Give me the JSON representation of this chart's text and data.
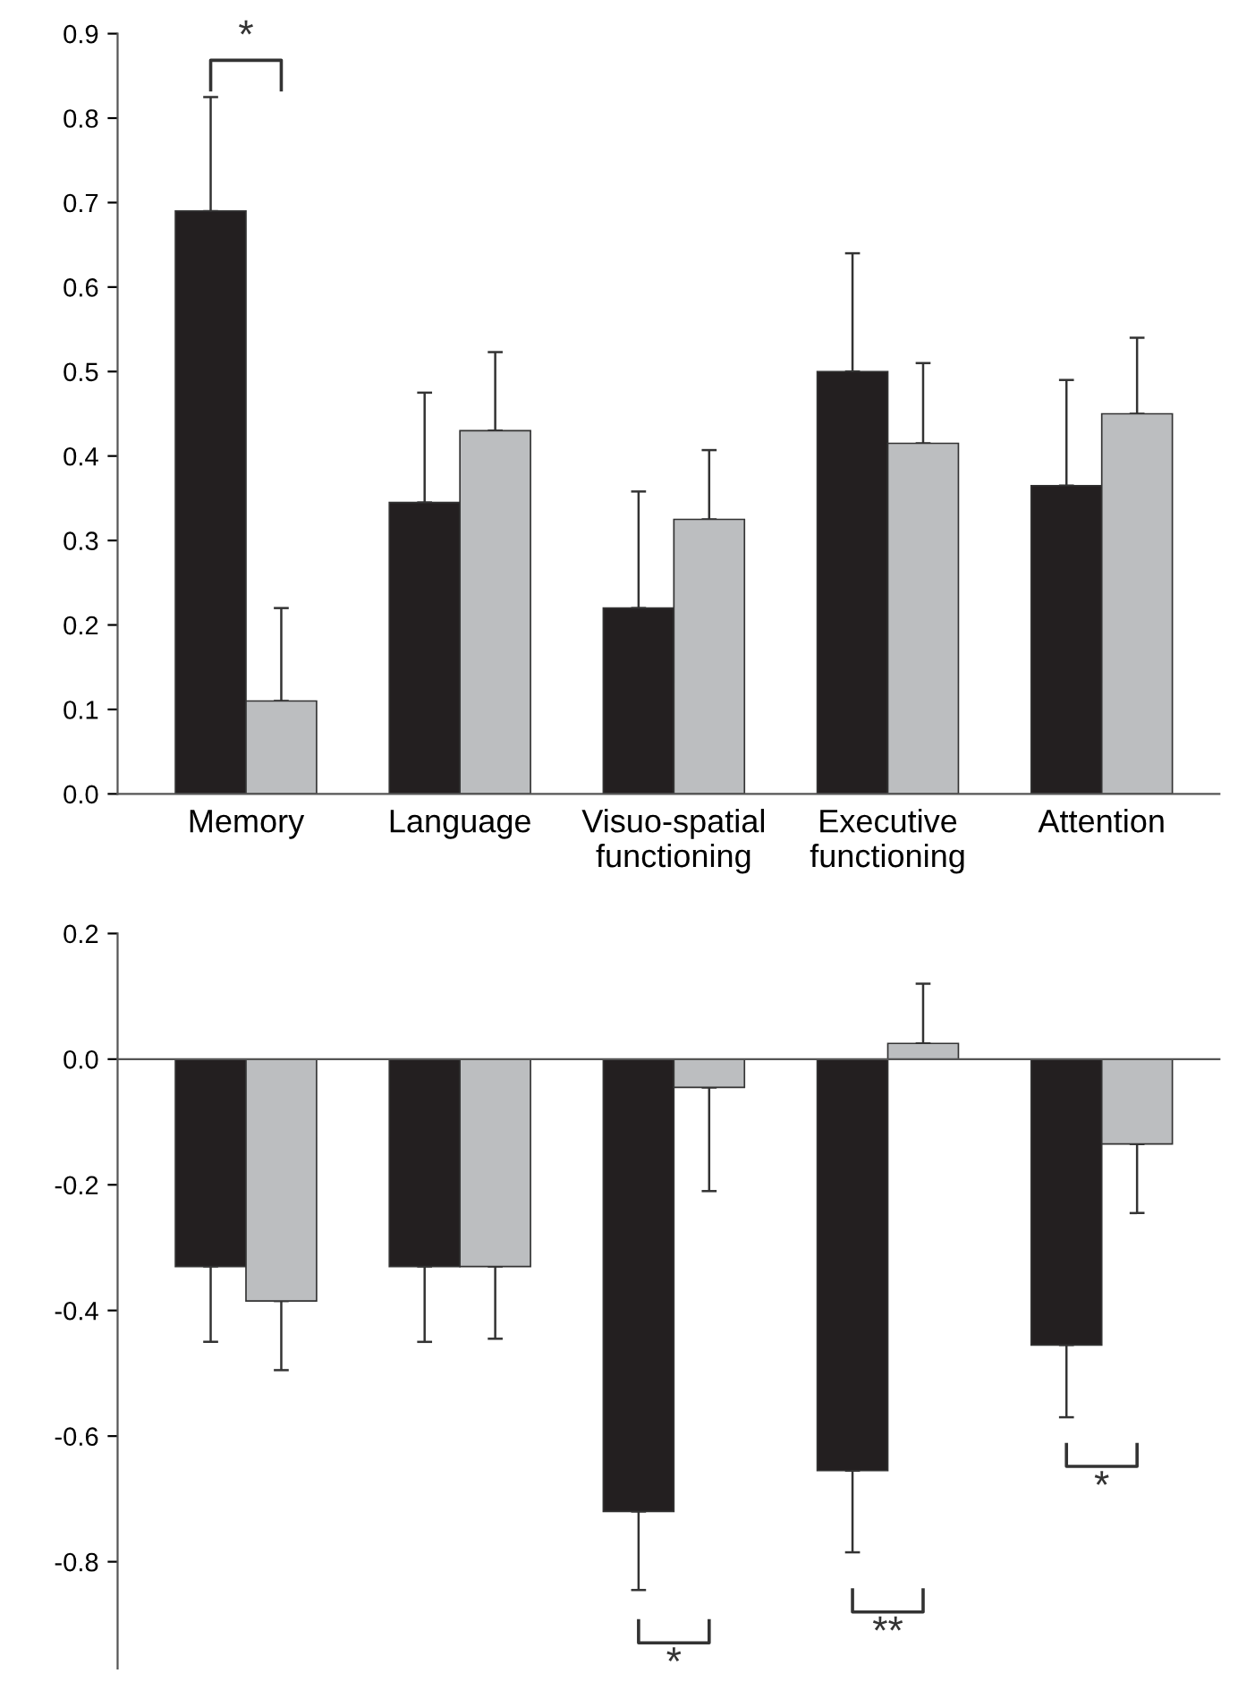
{
  "chart_data": [
    {
      "type": "bar",
      "categories": [
        "Memory",
        "Language",
        "Visuo-spatial\nfunctioning",
        "Executive\nfunctioning",
        "Attention"
      ],
      "series": [
        {
          "color": "#231f20",
          "values": [
            0.69,
            0.345,
            0.22,
            0.5,
            0.365
          ],
          "errors": [
            [
              0.69,
              0.825
            ],
            [
              0.345,
              0.475
            ],
            [
              0.22,
              0.358
            ],
            [
              0.5,
              0.64
            ],
            [
              0.365,
              0.49
            ]
          ]
        },
        {
          "color": "#bcbec0",
          "values": [
            0.11,
            0.43,
            0.325,
            0.415,
            0.45
          ],
          "errors": [
            [
              0.11,
              0.22
            ],
            [
              0.43,
              0.523
            ],
            [
              0.325,
              0.407
            ],
            [
              0.415,
              0.51
            ],
            [
              0.45,
              0.54
            ]
          ]
        }
      ],
      "ylim": [
        0,
        0.9
      ],
      "yticks": [
        "0.0",
        0.1,
        0.2,
        0.3,
        0.4,
        0.5,
        0.6,
        0.7,
        0.8,
        0.9
      ],
      "annotations": [
        "*"
      ],
      "grid": false,
      "legend": false
    },
    {
      "type": "bar",
      "categories": [
        null,
        null,
        null,
        null,
        null
      ],
      "series": [
        {
          "color": "#231f20",
          "values": [
            -0.33,
            -0.33,
            -0.72,
            -0.655,
            -0.455
          ],
          "errors": [
            [
              -0.45,
              -0.33
            ],
            [
              -0.45,
              -0.33
            ],
            [
              -0.845,
              -0.72
            ],
            [
              -0.785,
              -0.655
            ],
            [
              -0.57,
              -0.455
            ]
          ]
        },
        {
          "color": "#bcbec0",
          "values": [
            -0.385,
            -0.33,
            -0.045,
            0.025,
            -0.135
          ],
          "errors": [
            [
              -0.495,
              -0.385
            ],
            [
              -0.445,
              -0.33
            ],
            [
              -0.21,
              -0.045
            ],
            [
              0.025,
              0.12
            ],
            [
              -0.245,
              -0.135
            ]
          ]
        }
      ],
      "ylim": [
        -0.97,
        0.2
      ],
      "yticks": [
        0.2,
        "0.0",
        -0.2,
        -0.4,
        -0.6,
        -0.8
      ],
      "annotations": [
        "*",
        "**",
        "*"
      ],
      "grid": false,
      "legend": false
    }
  ]
}
